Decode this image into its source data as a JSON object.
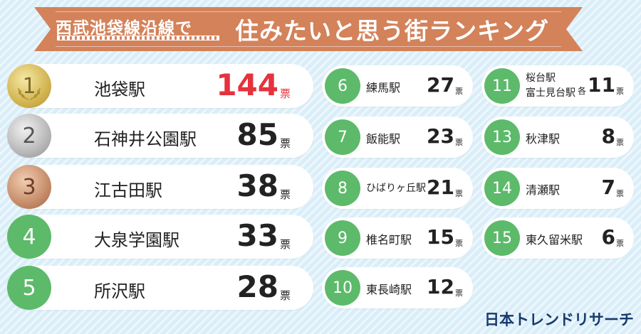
{
  "title": {
    "line_name": "西武池袋線沿線で",
    "main": "住みたいと思う街ランキング"
  },
  "vote_suffix": "票",
  "rankings": [
    {
      "rank": "1",
      "station": "池袋駅",
      "votes": "144"
    },
    {
      "rank": "2",
      "station": "石神井公園駅",
      "votes": "85"
    },
    {
      "rank": "3",
      "station": "江古田駅",
      "votes": "38"
    },
    {
      "rank": "4",
      "station": "大泉学園駅",
      "votes": "33"
    },
    {
      "rank": "5",
      "station": "所沢駅",
      "votes": "28"
    },
    {
      "rank": "6",
      "station": "練馬駅",
      "votes": "27"
    },
    {
      "rank": "7",
      "station": "飯能駅",
      "votes": "23"
    },
    {
      "rank": "8",
      "station": "ひばりヶ丘駅",
      "votes": "21"
    },
    {
      "rank": "9",
      "station": "椎名町駅",
      "votes": "15"
    },
    {
      "rank": "10",
      "station": "東長崎駅",
      "votes": "12"
    },
    {
      "rank": "11",
      "station_line1": "桜台駅",
      "station_line2": "富士見台駅",
      "prefix": "各",
      "votes": "11"
    },
    {
      "rank": "13",
      "station": "秋津駅",
      "votes": "8"
    },
    {
      "rank": "14",
      "station": "清瀬駅",
      "votes": "7"
    },
    {
      "rank": "15",
      "station": "東久留米駅",
      "votes": "6"
    }
  ],
  "logo": "日本トレンドリサーチ",
  "colors": {
    "banner": "#d3825a",
    "rank_green": "#5cba6a",
    "first_place_votes": "#e5323c",
    "background": "#d9eef8"
  }
}
